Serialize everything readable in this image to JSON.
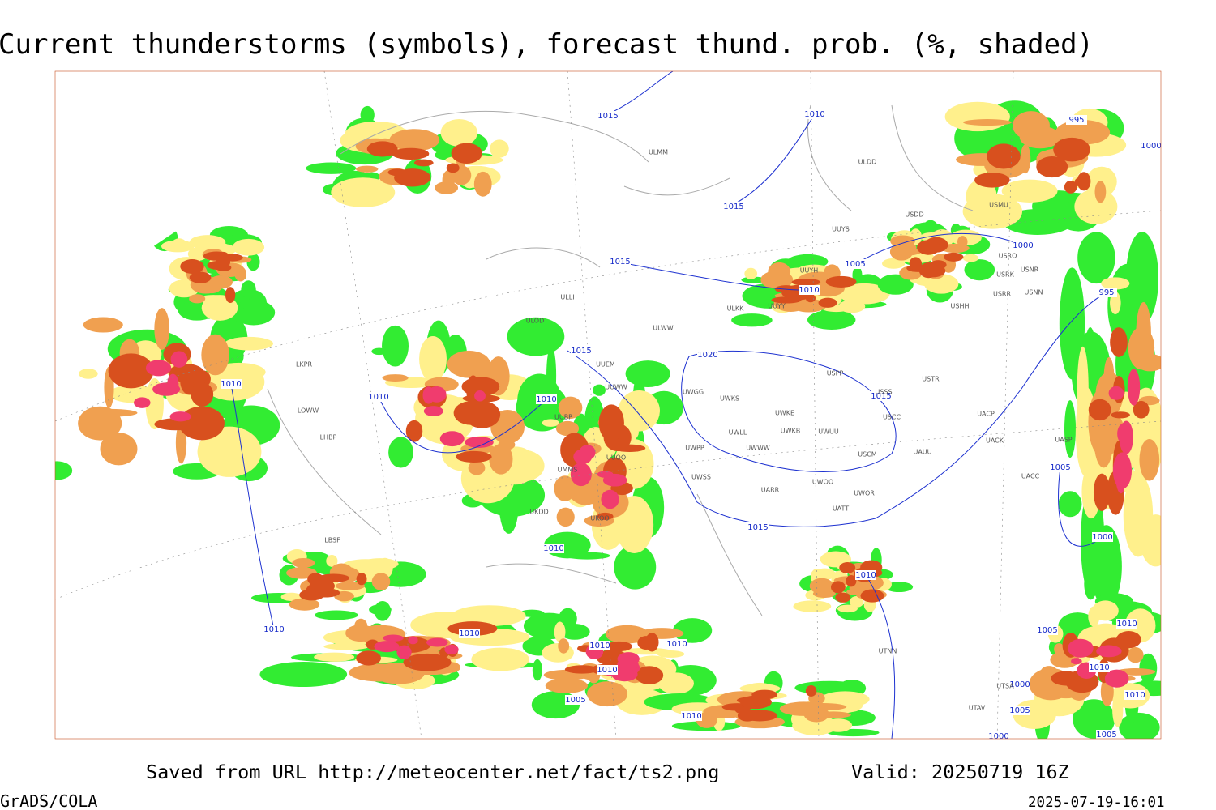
{
  "header": {
    "title": "Current thunderstorms (symbols), forecast thund. prob. (%, shaded)"
  },
  "footer": {
    "saved_from": "Saved from URL http://meteocenter.net/fact/ts2.png",
    "valid": "Valid: 20250719 16Z",
    "software": "GrADS/COLA",
    "timestamp": "2025-07-19-16:01"
  },
  "map": {
    "isobar_labels": [
      "1015",
      "1010",
      "995",
      "1000",
      "1015",
      "1015",
      "1000",
      "1005",
      "1010",
      "995",
      "1015",
      "1020",
      "1010",
      "1010",
      "1010",
      "1015",
      "1005",
      "1015",
      "1000",
      "1010",
      "1010",
      "1010",
      "1010",
      "1010",
      "1010",
      "1010",
      "1005",
      "1010",
      "1010",
      "1000",
      "1005",
      "1010",
      "1010",
      "1005",
      "1000",
      "1005"
    ],
    "station_labels": [
      "ULMM",
      "ULDD",
      "USMU",
      "USDD",
      "UUYS",
      "USRO",
      "USRK",
      "USNR",
      "UUYH",
      "USHH",
      "USRR",
      "USNN",
      "ULKK",
      "UUYY",
      "ULOD",
      "ULWW",
      "UUEM",
      "USPP",
      "USTR",
      "UUWW",
      "USSS",
      "UWGG",
      "UWKS",
      "UWKE",
      "UACP",
      "USCC",
      "UWKB",
      "UWUU",
      "UWLL",
      "UACK",
      "UWWW",
      "UWPP",
      "UAUU",
      "USCM",
      "UASP",
      "UWSS",
      "UACC",
      "UWOO",
      "UWOR",
      "UARR",
      "UATT",
      "LKPR",
      "LOWW",
      "LHBP",
      "LBSF",
      "UKDD",
      "UKOO",
      "UUOO",
      "UMMS",
      "UUBP",
      "ULLI",
      "UTNN",
      "UTSA",
      "UTAV"
    ]
  }
}
